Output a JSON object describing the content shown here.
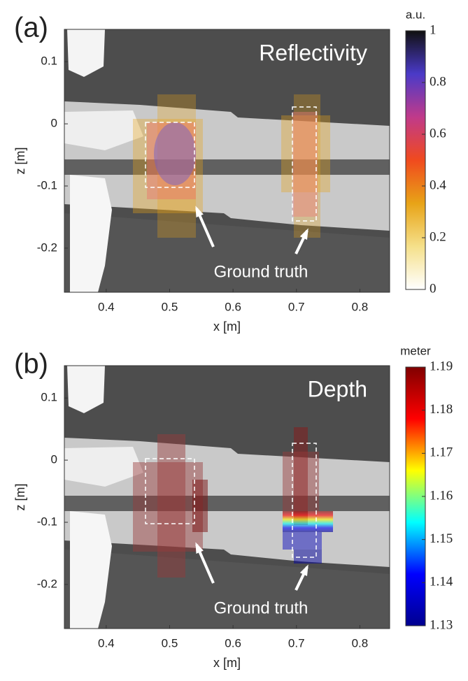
{
  "chart_data": [
    {
      "type": "heatmap",
      "panel_label": "(a)",
      "annotation": "Reflectivity",
      "arrow_label": "Ground truth",
      "xlabel": "x [m]",
      "ylabel": "z [m]",
      "xlim": [
        0.334,
        0.847
      ],
      "xticks": [
        0.4,
        0.5,
        0.6,
        0.7,
        0.8
      ],
      "ylim": [
        -0.271,
        0.152
      ],
      "yticks": [
        0.1,
        0,
        -0.1,
        -0.2
      ],
      "colorbar": {
        "label": "a.u.",
        "lim": [
          0,
          1
        ],
        "ticks": [
          0,
          0.2,
          0.4,
          0.6,
          0.8,
          1
        ],
        "colormap": [
          "#ffffff",
          "#f5e08a",
          "#e8a317",
          "#f04a1e",
          "#c03a8a",
          "#4a3ac8",
          "#101010"
        ]
      }
    },
    {
      "type": "heatmap",
      "panel_label": "(b)",
      "annotation": "Depth",
      "arrow_label": "Ground truth",
      "xlabel": "x [m]",
      "ylabel": "z [m]",
      "xlim": [
        0.334,
        0.847
      ],
      "xticks": [
        0.4,
        0.5,
        0.6,
        0.7,
        0.8
      ],
      "ylim": [
        -0.271,
        0.152
      ],
      "yticks": [
        0.1,
        0,
        -0.1,
        -0.2
      ],
      "colorbar": {
        "label": "meter",
        "lim": [
          1.13,
          1.19
        ],
        "ticks": [
          1.13,
          1.14,
          1.15,
          1.16,
          1.17,
          1.18,
          1.19
        ],
        "colormap": [
          "#00008f",
          "#0000ff",
          "#00ffff",
          "#ffff00",
          "#ff0000",
          "#800000"
        ]
      }
    }
  ]
}
